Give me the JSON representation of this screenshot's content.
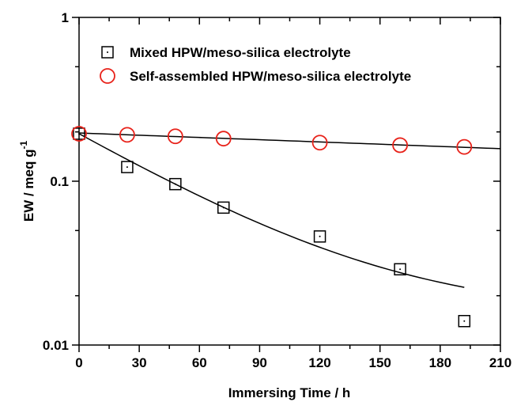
{
  "chart_data": {
    "type": "scatter",
    "title": "",
    "xlabel": "Immersing Time / h",
    "ylabel": "EW / meq g",
    "ylabel_superscript": "-1",
    "xlim": [
      0,
      210
    ],
    "ylim": [
      0.01,
      1
    ],
    "yscale": "log",
    "x_ticks": [
      0,
      30,
      60,
      90,
      120,
      150,
      180,
      210
    ],
    "x_tick_labels": [
      "0",
      "30",
      "60",
      "90",
      "120",
      "150",
      "180",
      "210"
    ],
    "y_ticks": [
      0.01,
      0.1,
      1
    ],
    "y_tick_labels": [
      "0.01",
      "0.1",
      "1"
    ],
    "grid": false,
    "legend_position": "top-left",
    "series": [
      {
        "name": "Mixed HPW/meso-silica electrolyte",
        "marker": "square",
        "color": "#000000",
        "x": [
          0,
          24,
          48,
          72,
          120,
          160,
          192
        ],
        "y": [
          0.195,
          0.122,
          0.096,
          0.069,
          0.046,
          0.029,
          0.014
        ],
        "fit": {
          "x0": 0,
          "x1": 192,
          "y0": 0.195,
          "y1": 0.0225,
          "curvature": "decay"
        }
      },
      {
        "name": "Self-assembled HPW/meso-silica electrolyte",
        "marker": "circle",
        "color": "#e8221a",
        "x": [
          0,
          24,
          48,
          72,
          120,
          160,
          192
        ],
        "y": [
          0.195,
          0.192,
          0.188,
          0.182,
          0.172,
          0.166,
          0.162
        ],
        "fit": {
          "x0": 0,
          "x1": 210,
          "y0": 0.197,
          "y1": 0.158,
          "curvature": "linear"
        }
      }
    ]
  }
}
